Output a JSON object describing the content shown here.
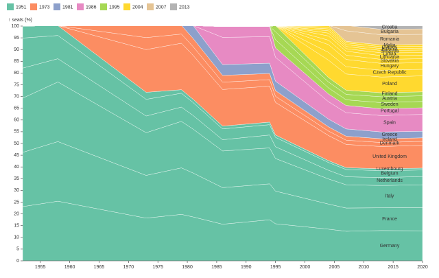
{
  "chart_data": {
    "type": "stacked-area",
    "y_label": "↑ seats (%)",
    "legend": [
      {
        "label": "1951",
        "color": "#66c2a5"
      },
      {
        "label": "1973",
        "color": "#fc8d62"
      },
      {
        "label": "1981",
        "color": "#8da0cb"
      },
      {
        "label": "1986",
        "color": "#e78ac3"
      },
      {
        "label": "1995",
        "color": "#a6d854"
      },
      {
        "label": "2004",
        "color": "#ffd92f"
      },
      {
        "label": "2007",
        "color": "#e5c494"
      },
      {
        "label": "2013",
        "color": "#b3b3b3"
      }
    ],
    "x": [
      1952,
      1958,
      1973,
      1979,
      1981,
      1986,
      1994,
      1995,
      2004,
      2007,
      2013,
      2020
    ],
    "xlim": [
      1952,
      2020
    ],
    "xticks": [
      1955,
      1960,
      1965,
      1970,
      1975,
      1980,
      1985,
      1990,
      1995,
      2000,
      2005,
      2010,
      2015,
      2020
    ],
    "ylim": [
      0,
      100
    ],
    "yticks": [
      0,
      5,
      10,
      15,
      20,
      25,
      30,
      35,
      40,
      45,
      50,
      55,
      60,
      65,
      70,
      75,
      80,
      85,
      90,
      95,
      100
    ],
    "series": [
      {
        "name": "Germany",
        "color": "#66c2a5",
        "values": [
          23.1,
          25.4,
          18.2,
          19.8,
          18.7,
          15.6,
          17.5,
          15.8,
          13.5,
          12.6,
          12.9,
          12.8
        ]
      },
      {
        "name": "France",
        "color": "#66c2a5",
        "values": [
          23.1,
          25.4,
          18.2,
          19.8,
          18.7,
          15.6,
          15.3,
          13.9,
          10.7,
          9.9,
          9.7,
          9.9
        ]
      },
      {
        "name": "Italy",
        "color": "#66c2a5",
        "values": [
          23.1,
          25.4,
          18.2,
          19.8,
          18.7,
          15.6,
          15.3,
          13.9,
          10.7,
          9.9,
          9.5,
          9.7
        ]
      },
      {
        "name": "Netherlands",
        "color": "#66c2a5",
        "values": [
          12.8,
          9.9,
          7.1,
          6.1,
          5.8,
          4.8,
          5.5,
          5.0,
          3.7,
          3.4,
          3.4,
          3.5
        ]
      },
      {
        "name": "Belgium",
        "color": "#66c2a5",
        "values": [
          12.8,
          9.9,
          7.1,
          5.9,
          5.5,
          4.6,
          4.4,
          4.0,
          3.3,
          3.1,
          2.9,
          2.8
        ]
      },
      {
        "name": "Luxembourg",
        "color": "#66c2a5",
        "values": [
          5.1,
          4.2,
          3.0,
          1.5,
          1.4,
          1.2,
          1.1,
          1.0,
          0.8,
          0.8,
          0.8,
          0.8
        ]
      },
      {
        "name": "United Kingdom",
        "color": "#fc8d62",
        "values": [
          0,
          0,
          18.2,
          19.8,
          18.7,
          15.6,
          15.3,
          13.9,
          10.7,
          9.9,
          9.5,
          9.7
        ]
      },
      {
        "name": "Denmark",
        "color": "#fc8d62",
        "values": [
          0,
          0,
          5.1,
          3.9,
          3.7,
          3.1,
          2.8,
          2.6,
          1.9,
          1.8,
          1.7,
          1.7
        ]
      },
      {
        "name": "Ireland",
        "color": "#fc8d62",
        "values": [
          0,
          0,
          5.1,
          3.7,
          3.5,
          2.9,
          2.6,
          2.4,
          1.8,
          1.7,
          1.6,
          1.5
        ]
      },
      {
        "name": "Greece",
        "color": "#8da0cb",
        "values": [
          0,
          0,
          0,
          0,
          5.5,
          4.6,
          4.4,
          4.0,
          3.3,
          3.1,
          2.9,
          2.8
        ]
      },
      {
        "name": "Spain",
        "color": "#e78ac3",
        "values": [
          0,
          0,
          0,
          0,
          0,
          11.6,
          11.3,
          10.2,
          7.4,
          6.9,
          7.0,
          7.2
        ]
      },
      {
        "name": "Portugal",
        "color": "#e78ac3",
        "values": [
          0,
          0,
          0,
          0,
          0,
          4.6,
          4.4,
          4.0,
          3.3,
          3.1,
          2.9,
          2.8
        ]
      },
      {
        "name": "Sweden",
        "color": "#a6d854",
        "values": [
          0,
          0,
          0,
          0,
          0,
          0,
          0,
          3.5,
          2.6,
          2.4,
          2.6,
          2.7
        ]
      },
      {
        "name": "Austria",
        "color": "#a6d854",
        "values": [
          0,
          0,
          0,
          0,
          0,
          0,
          0,
          3.4,
          2.5,
          2.3,
          2.5,
          2.4
        ]
      },
      {
        "name": "Finland",
        "color": "#a6d854",
        "values": [
          0,
          0,
          0,
          0,
          0,
          0,
          0,
          2.6,
          1.9,
          1.8,
          1.7,
          1.7
        ]
      },
      {
        "name": "Poland",
        "color": "#ffd92f",
        "values": [
          0,
          0,
          0,
          0,
          0,
          0,
          0,
          0,
          7.4,
          6.9,
          6.7,
          6.8
        ]
      },
      {
        "name": "Czech Republic",
        "color": "#ffd92f",
        "values": [
          0,
          0,
          0,
          0,
          0,
          0,
          0,
          0,
          3.3,
          3.1,
          2.9,
          2.8
        ]
      },
      {
        "name": "Hungary",
        "color": "#ffd92f",
        "values": [
          0,
          0,
          0,
          0,
          0,
          0,
          0,
          0,
          3.3,
          3.1,
          2.9,
          2.8
        ]
      },
      {
        "name": "Slovakia",
        "color": "#ffd92f",
        "values": [
          0,
          0,
          0,
          0,
          0,
          0,
          0,
          0,
          1.9,
          1.8,
          1.7,
          1.7
        ]
      },
      {
        "name": "Lithuania",
        "color": "#ffd92f",
        "values": [
          0,
          0,
          0,
          0,
          0,
          0,
          0,
          0,
          1.8,
          1.7,
          1.6,
          1.5
        ]
      },
      {
        "name": "Latvia",
        "color": "#ffd92f",
        "values": [
          0,
          0,
          0,
          0,
          0,
          0,
          0,
          0,
          1.2,
          1.1,
          1.2,
          1.1
        ]
      },
      {
        "name": "Slovenia",
        "color": "#ffd92f",
        "values": [
          0,
          0,
          0,
          0,
          0,
          0,
          0,
          0,
          1.0,
          0.9,
          1.0,
          1.1
        ]
      },
      {
        "name": "Estonia",
        "color": "#ffd92f",
        "values": [
          0,
          0,
          0,
          0,
          0,
          0,
          0,
          0,
          0.8,
          0.8,
          0.8,
          0.8
        ]
      },
      {
        "name": "Cyprus",
        "color": "#ffd92f",
        "values": [
          0,
          0,
          0,
          0,
          0,
          0,
          0,
          0,
          0.8,
          0.8,
          0.8,
          0.8
        ]
      },
      {
        "name": "Malta",
        "color": "#ffd92f",
        "values": [
          0,
          0,
          0,
          0,
          0,
          0,
          0,
          0,
          0.7,
          0.6,
          0.8,
          0.8
        ]
      },
      {
        "name": "Romania",
        "color": "#e5c494",
        "values": [
          0,
          0,
          0,
          0,
          0,
          0,
          0,
          0,
          0,
          4.5,
          4.3,
          4.3
        ]
      },
      {
        "name": "Bulgaria",
        "color": "#e5c494",
        "values": [
          0,
          0,
          0,
          0,
          0,
          0,
          0,
          0,
          0,
          2.3,
          2.3,
          2.3
        ]
      },
      {
        "name": "Croatia",
        "color": "#b3b3b3",
        "values": [
          0,
          0,
          0,
          0,
          0,
          0,
          0,
          0,
          0,
          0,
          1.6,
          1.5
        ]
      }
    ]
  }
}
